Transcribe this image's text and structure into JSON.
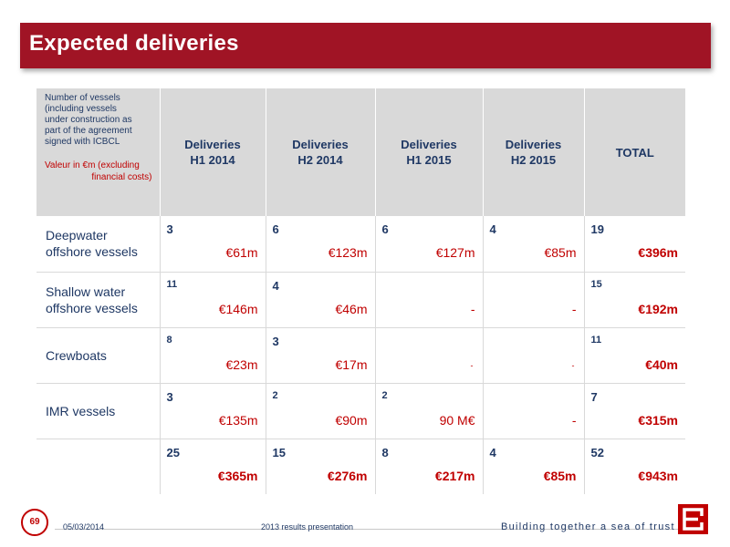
{
  "title": "Expected deliveries",
  "header": {
    "note_lines": [
      "Number of vessels",
      "(including vessels",
      "under construction as",
      "part of the agreement",
      "signed with ICBCL"
    ],
    "note_red_1": "Valeur in €m (excluding",
    "note_red_2": "financial costs)",
    "columns": [
      {
        "line1": "Deliveries",
        "line2": "H1 2014"
      },
      {
        "line1": "Deliveries",
        "line2": "H2 2014"
      },
      {
        "line1": "Deliveries",
        "line2": "H1 2015"
      },
      {
        "line1": "Deliveries",
        "line2": "H2 2015"
      },
      {
        "line1": "TOTAL",
        "line2": ""
      }
    ]
  },
  "rows": [
    {
      "label_1": "Deepwater",
      "label_2": "offshore vessels",
      "cells": [
        {
          "count": "3",
          "amount": "€61m"
        },
        {
          "count": "6",
          "amount": "€123m"
        },
        {
          "count": "6",
          "amount": "€127m"
        },
        {
          "count": "4",
          "amount": "€85m"
        },
        {
          "count": "19",
          "amount": "€396m"
        }
      ]
    },
    {
      "label_1": "Shallow water",
      "label_2": "offshore vessels",
      "cells": [
        {
          "count": "11",
          "amount": "€146m"
        },
        {
          "count": "4",
          "amount": "€46m"
        },
        {
          "count": "",
          "amount": "-"
        },
        {
          "count": "",
          "amount": "-"
        },
        {
          "count": "15",
          "amount": "€192m"
        }
      ]
    },
    {
      "label_1": "Crewboats",
      "label_2": "",
      "cells": [
        {
          "count": "8",
          "amount": "€23m"
        },
        {
          "count": "3",
          "amount": "€17m"
        },
        {
          "count": "",
          "amount": "-"
        },
        {
          "count": "",
          "amount": "-"
        },
        {
          "count": "11",
          "amount": "€40m"
        }
      ]
    },
    {
      "label_1": "IMR vessels",
      "label_2": "",
      "cells": [
        {
          "count": "3",
          "amount": "€135m"
        },
        {
          "count": "2",
          "amount": "€90m"
        },
        {
          "count": "2",
          "amount": "90 M€"
        },
        {
          "count": "",
          "amount": "-"
        },
        {
          "count": "7",
          "amount": "€315m"
        }
      ]
    },
    {
      "label_1": "",
      "label_2": "",
      "cells": [
        {
          "count": "25",
          "amount": "€365m"
        },
        {
          "count": "15",
          "amount": "€276m"
        },
        {
          "count": "8",
          "amount": "€217m"
        },
        {
          "count": "4",
          "amount": "€85m"
        },
        {
          "count": "52",
          "amount": "€943m"
        }
      ]
    }
  ],
  "footer": {
    "page_number": "69",
    "date": "05/03/2014",
    "presentation": "2013 results presentation",
    "tagline": "Building together a sea of trust",
    "logo_icon": "bourbon-b-logo-icon",
    "brand_color": "#c00000"
  }
}
